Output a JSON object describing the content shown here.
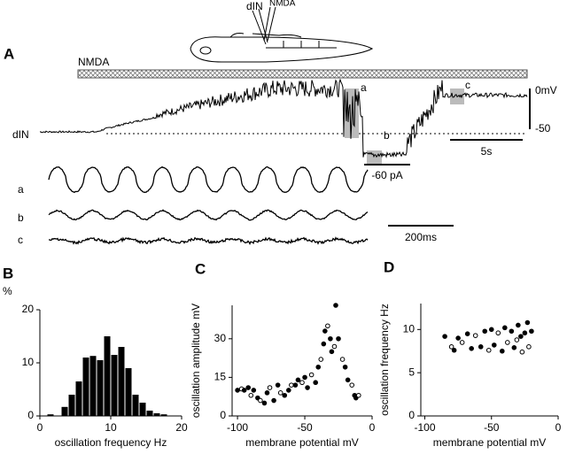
{
  "panel_a": {
    "label": "A",
    "schematic_dIN": "dIN",
    "schematic_NMDA": "NMDA",
    "nmda_bar": "NMDA",
    "trace_label": "dIN",
    "box_a": "a",
    "box_b": "b",
    "box_c": "c",
    "scale_0mV": "0mV",
    "scale_minus50": "-50",
    "current": "-60 pA",
    "time_5s": "5s",
    "sweep_a": "a",
    "sweep_b": "b",
    "sweep_c": "c",
    "time_200ms": "200ms"
  },
  "chart_data": [
    {
      "type": "histogram",
      "panel": "B",
      "ylabel": "%",
      "xlabel": "oscillation frequency Hz",
      "color": "#000000",
      "bins": [
        1,
        2,
        3,
        4,
        5,
        6,
        7,
        8,
        9,
        10,
        11,
        12,
        13,
        14,
        15,
        16,
        17,
        18
      ],
      "values": [
        0.3,
        0,
        1.7,
        4,
        6.5,
        11,
        11.3,
        10.5,
        15,
        11.5,
        13,
        9,
        4,
        2.5,
        1,
        0.5,
        0.3
      ],
      "xlim": [
        0,
        20
      ],
      "xticks": [
        0,
        10,
        20
      ],
      "ylim": [
        0,
        20
      ],
      "yticks": [
        0,
        10,
        20
      ]
    },
    {
      "type": "scatter",
      "panel": "C",
      "ylabel": "oscillation amplitude mV",
      "xlabel": "membrane potential mV",
      "color": "#000000",
      "x": [
        -100,
        -97,
        -95,
        -92,
        -90,
        -88,
        -85,
        -83,
        -80,
        -78,
        -76,
        -73,
        -70,
        -68,
        -65,
        -62,
        -60,
        -57,
        -55,
        -52,
        -50,
        -48,
        -45,
        -42,
        -40,
        -38,
        -36,
        -35,
        -33,
        -31,
        -30,
        -28,
        -27,
        -25,
        -22,
        -20,
        -18,
        -15,
        -13,
        -12,
        -10
      ],
      "values": [
        10,
        10.5,
        10,
        11,
        8,
        10,
        7,
        6,
        5,
        9,
        11,
        6,
        12,
        9,
        8,
        10,
        12,
        12,
        14,
        13,
        15,
        11,
        16,
        13,
        19,
        22,
        28,
        33,
        35,
        30,
        25,
        27,
        43,
        30,
        22,
        19,
        14,
        12,
        8,
        7,
        8
      ],
      "xlim": [
        -104,
        0
      ],
      "xticks": [
        -100,
        -50,
        0
      ],
      "ylim": [
        0,
        43
      ],
      "yticks": [
        0,
        15,
        30
      ]
    },
    {
      "type": "scatter",
      "panel": "D",
      "ylabel": "oscillation frequency Hz",
      "xlabel": "membrane potential mV",
      "color": "#000000",
      "x": [
        -85,
        -80,
        -78,
        -75,
        -72,
        -68,
        -65,
        -62,
        -58,
        -55,
        -52,
        -50,
        -48,
        -45,
        -42,
        -40,
        -38,
        -35,
        -33,
        -31,
        -30,
        -28,
        -27,
        -25,
        -23,
        -22,
        -20
      ],
      "values": [
        9.2,
        8,
        7.6,
        9,
        8.5,
        9.5,
        7.8,
        9.3,
        8,
        9.8,
        7.6,
        10,
        8.2,
        9.6,
        7.5,
        10.2,
        8.5,
        9.8,
        7.9,
        8.8,
        10.5,
        9.2,
        7.4,
        9.6,
        10.8,
        8,
        9.8
      ],
      "xlim": [
        -103,
        0
      ],
      "xticks": [
        -100,
        -50,
        0
      ],
      "ylim": [
        0,
        13
      ],
      "yticks": [
        0,
        5,
        10
      ]
    }
  ]
}
